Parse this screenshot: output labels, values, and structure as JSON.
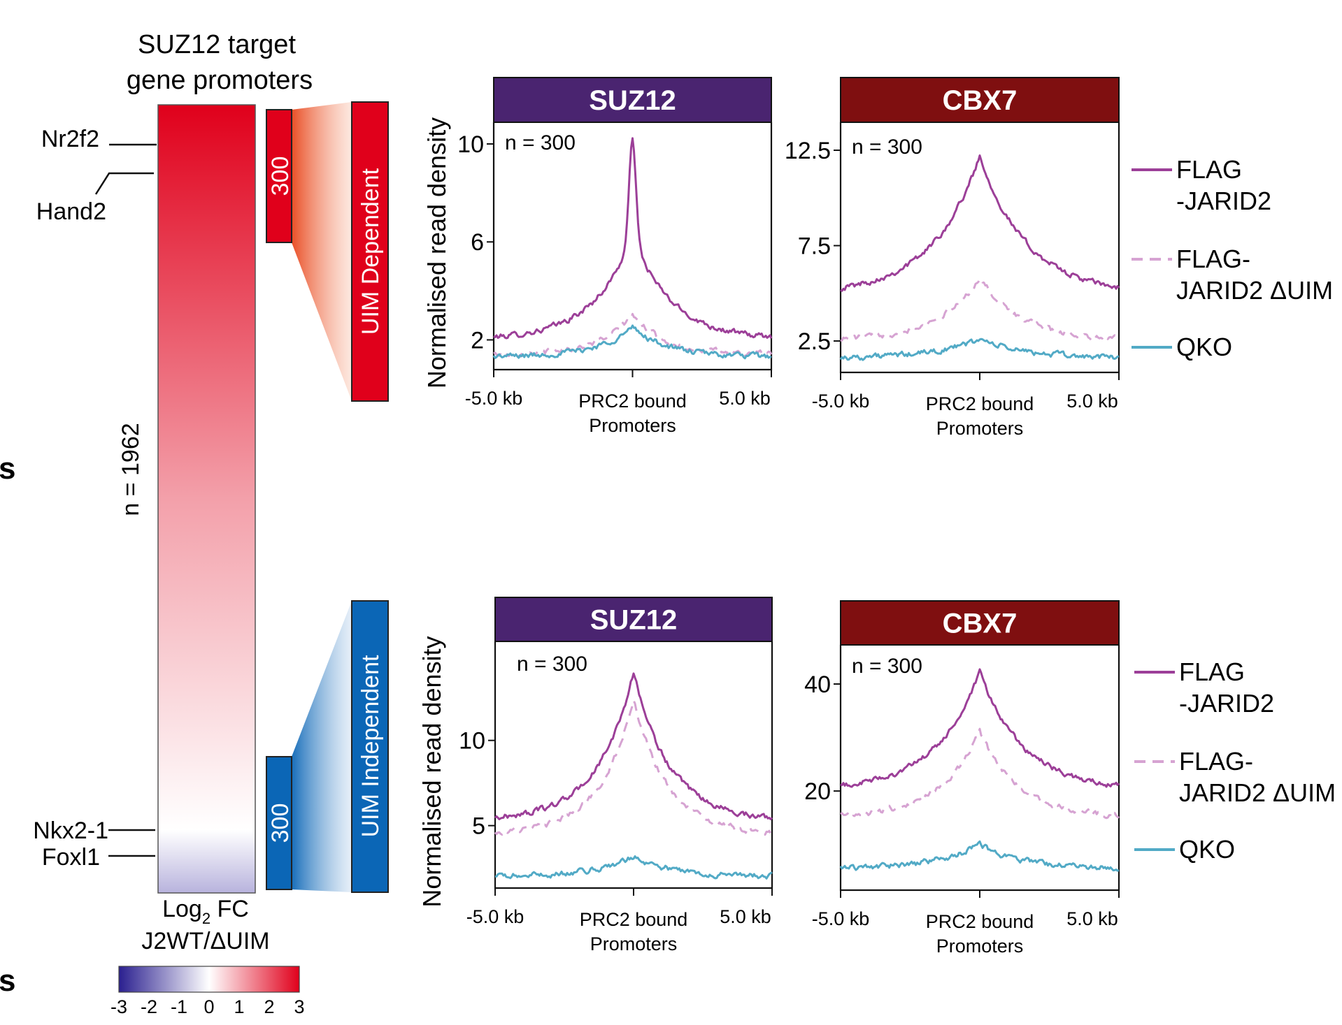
{
  "figure": {
    "edge_letter": "s",
    "heatmap": {
      "title_line1": "SUZ12 target",
      "title_line2": "gene promoters",
      "n_label": "n = 1962",
      "genes": [
        "Nr2f2",
        "Hand2",
        "Nkx2-1",
        "Foxl1"
      ],
      "xlabel_line1_main": "Log",
      "xlabel_line1_sub": "2",
      "xlabel_line1_rest": " FC",
      "xlabel_line2": "J2WT/ΔUIM",
      "colorbar_ticks": [
        "-3",
        "-2",
        "-1",
        "0",
        "1",
        "2",
        "3"
      ],
      "colorbar_min": -3,
      "colorbar_max": 3,
      "colors": {
        "high": "#e0001b",
        "mid": "#ffffff",
        "low": "#2a1f8f"
      },
      "top_bracket": {
        "count": "300",
        "label": "UIM Dependent",
        "color": "#e0001b"
      },
      "bottom_bracket": {
        "count": "300",
        "label": "UIM Independent",
        "color": "#0b66b6"
      }
    },
    "legend": [
      {
        "line1": "FLAG",
        "line2": "-JARID2",
        "color": "#9c3f98",
        "dash": "none"
      },
      {
        "line1": "FLAG-",
        "line2": "JARID2 ΔUIM",
        "color": "#d6a3d2",
        "dash": "dashed"
      },
      {
        "line1": "QKO",
        "line2": "",
        "color": "#52aac6",
        "dash": "none"
      }
    ]
  },
  "chart_data": [
    {
      "type": "line",
      "title": "SUZ12",
      "title_color": "#4a2470",
      "n_label": "n = 300",
      "ylabel": "Normalised read density",
      "xlabel_line1": "PRC2 bound",
      "xlabel_line2": "Promoters",
      "xtick_labels": [
        "-5.0 kb",
        "5.0 kb"
      ],
      "x_range_kb": [
        -5,
        5
      ],
      "ylim": [
        0.9,
        10.6
      ],
      "yticks": [
        2,
        6,
        10
      ],
      "ytick_labels": [
        "2",
        "6",
        "10"
      ],
      "series": [
        {
          "name": "FLAG -JARID2",
          "color": "#9c3f98",
          "dashed": false,
          "base": 2.0,
          "peak": 6.3,
          "width": 2.6,
          "spike": 4.0
        },
        {
          "name": "FLAG- JARID2 ΔUIM",
          "color": "#d6a3d2",
          "dashed": true,
          "base": 1.4,
          "peak": 3.0,
          "width": 2.2,
          "spike": 0
        },
        {
          "name": "QKO",
          "color": "#52aac6",
          "dashed": false,
          "base": 1.3,
          "peak": 2.5,
          "width": 2.4,
          "spike": 0
        }
      ]
    },
    {
      "type": "line",
      "title": "CBX7",
      "title_color": "#7f0f10",
      "n_label": "n = 300",
      "ylabel": "",
      "xlabel_line1": "PRC2 bound",
      "xlabel_line2": "Promoters",
      "xtick_labels": [
        "-5.0 kb",
        "5.0 kb"
      ],
      "x_range_kb": [
        -5,
        5
      ],
      "ylim": [
        1.0,
        13.6
      ],
      "yticks": [
        2.5,
        7.5,
        12.5
      ],
      "ytick_labels": [
        "2.5",
        "7.5",
        "12.5"
      ],
      "series": [
        {
          "name": "FLAG -JARID2",
          "color": "#9c3f98",
          "dashed": false,
          "base": 4.9,
          "peak": 12.2,
          "width": 3.2,
          "spike": 0
        },
        {
          "name": "FLAG- JARID2 ΔUIM",
          "color": "#d6a3d2",
          "dashed": true,
          "base": 2.5,
          "peak": 5.8,
          "width": 2.8,
          "spike": 0
        },
        {
          "name": "QKO",
          "color": "#52aac6",
          "dashed": false,
          "base": 1.6,
          "peak": 2.6,
          "width": 3.0,
          "spike": 0
        }
      ]
    },
    {
      "type": "line",
      "title": "SUZ12",
      "title_color": "#4a2470",
      "n_label": "n = 300",
      "ylabel": "Normalised read density",
      "xlabel_line1": "PRC2 bound",
      "xlabel_line2": "Promoters",
      "xtick_labels": [
        "-5.0 kb",
        "5.0 kb"
      ],
      "x_range_kb": [
        -5,
        5
      ],
      "ylim": [
        1.5,
        15.4
      ],
      "yticks": [
        5,
        10
      ],
      "ytick_labels": [
        "5",
        "10"
      ],
      "series": [
        {
          "name": "FLAG -JARID2",
          "color": "#9c3f98",
          "dashed": false,
          "base": 5.3,
          "peak": 14.0,
          "width": 2.4,
          "spike": 0
        },
        {
          "name": "FLAG- JARID2 ΔUIM",
          "color": "#d6a3d2",
          "dashed": true,
          "base": 4.5,
          "peak": 12.5,
          "width": 2.2,
          "spike": 0
        },
        {
          "name": "QKO",
          "color": "#52aac6",
          "dashed": false,
          "base": 2.0,
          "peak": 3.2,
          "width": 2.6,
          "spike": 0
        }
      ]
    },
    {
      "type": "line",
      "title": "CBX7",
      "title_color": "#7f0f10",
      "n_label": "n = 300",
      "ylabel": "",
      "xlabel_line1": "PRC2 bound",
      "xlabel_line2": "Promoters",
      "xtick_labels": [
        "-5.0 kb",
        "5.0 kb"
      ],
      "x_range_kb": [
        -5,
        5
      ],
      "ylim": [
        2,
        46
      ],
      "yticks": [
        20,
        40
      ],
      "ytick_labels": [
        "20",
        "40"
      ],
      "series": [
        {
          "name": "FLAG -JARID2",
          "color": "#9c3f98",
          "dashed": false,
          "base": 20,
          "peak": 42,
          "width": 3.0,
          "spike": 0
        },
        {
          "name": "FLAG- JARID2 ΔUIM",
          "color": "#d6a3d2",
          "dashed": true,
          "base": 15,
          "peak": 31,
          "width": 2.6,
          "spike": 0
        },
        {
          "name": "QKO",
          "color": "#52aac6",
          "dashed": false,
          "base": 5.5,
          "peak": 10,
          "width": 2.8,
          "spike": 0
        }
      ]
    }
  ]
}
